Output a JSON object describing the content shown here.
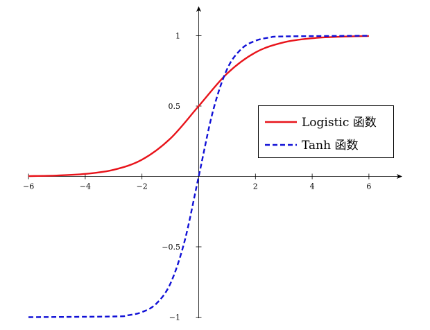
{
  "chart_data": {
    "type": "line",
    "title": "",
    "xlabel": "",
    "ylabel": "",
    "xlim": [
      -6,
      7
    ],
    "ylim": [
      -1,
      1.2
    ],
    "x_ticks": [
      -6,
      -4,
      -2,
      2,
      4,
      6
    ],
    "x_tick_labels": [
      "−6",
      "−4",
      "−2",
      "2",
      "4",
      "6"
    ],
    "y_ticks": [
      -1,
      -0.5,
      0.5,
      1
    ],
    "y_tick_labels": [
      "−1",
      "−0.5",
      "0.5",
      "1"
    ],
    "grid": false,
    "legend_position": "right",
    "series": [
      {
        "name": "Logistic 函数",
        "color": "#e8131a",
        "style": "solid",
        "x": [
          -6,
          -5,
          -4,
          -3,
          -2,
          -1,
          0,
          1,
          2,
          3,
          4,
          5,
          6
        ],
        "y": [
          0.0025,
          0.0067,
          0.018,
          0.047,
          0.119,
          0.269,
          0.5,
          0.731,
          0.881,
          0.953,
          0.982,
          0.993,
          0.998
        ]
      },
      {
        "name": "Tanh 函数",
        "color": "#1010d6",
        "style": "dashed",
        "x": [
          -6,
          -3,
          -2.5,
          -2,
          -1.5,
          -1,
          -0.5,
          0,
          0.5,
          1,
          1.5,
          2,
          2.5,
          3,
          6
        ],
        "y": [
          -1,
          -0.995,
          -0.987,
          -0.964,
          -0.905,
          -0.762,
          -0.462,
          0,
          0.462,
          0.762,
          0.905,
          0.964,
          0.987,
          0.995,
          1
        ]
      }
    ]
  }
}
